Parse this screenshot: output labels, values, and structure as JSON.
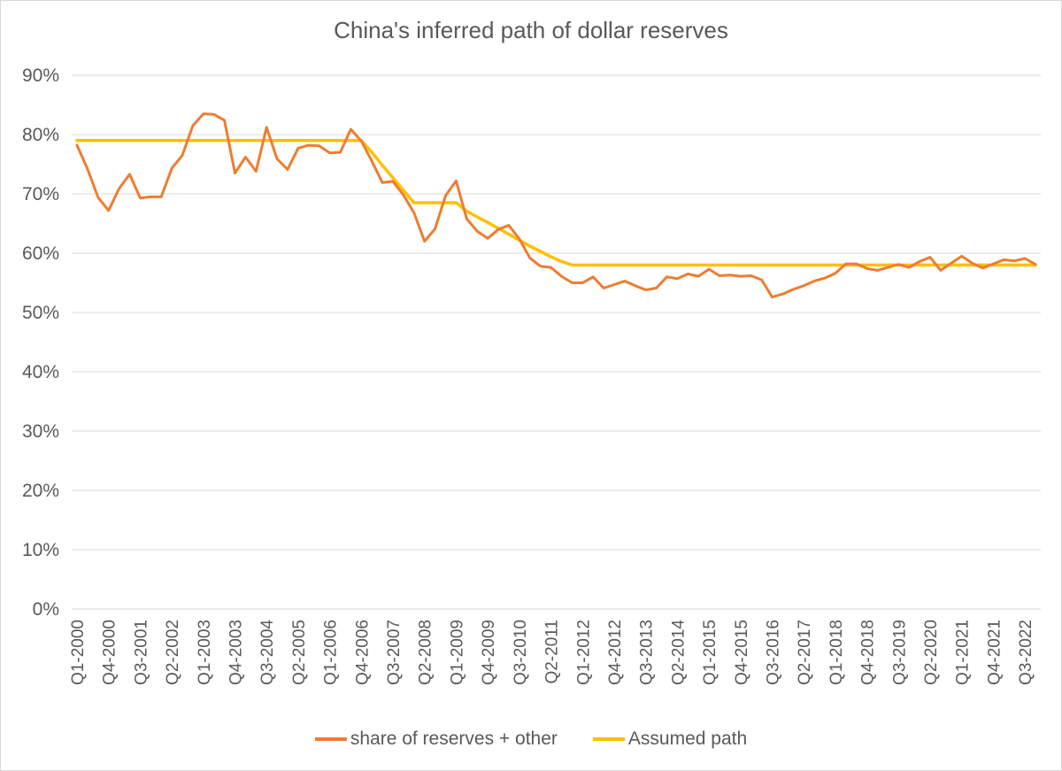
{
  "chart_data": {
    "type": "line",
    "title": "China's inferred path of dollar reserves",
    "xlabel": "",
    "ylabel": "",
    "ylim": [
      0,
      0.9
    ],
    "yticks": [
      0,
      0.1,
      0.2,
      0.3,
      0.4,
      0.5,
      0.6,
      0.7,
      0.8,
      0.9
    ],
    "ytick_labels": [
      "0%",
      "10%",
      "20%",
      "30%",
      "40%",
      "50%",
      "60%",
      "70%",
      "80%",
      "90%"
    ],
    "grid": true,
    "legend": "bottom",
    "x_start": "Q1-2000",
    "x_end": "Q4-2022",
    "x_tick_labels": [
      "Q1-2000",
      "Q4-2000",
      "Q3-2001",
      "Q2-2002",
      "Q1-2003",
      "Q4-2003",
      "Q3-2004",
      "Q2-2005",
      "Q1-2006",
      "Q4-2006",
      "Q3-2007",
      "Q2-2008",
      "Q1-2009",
      "Q4-2009",
      "Q3-2010",
      "Q2-2011",
      "Q1-2012",
      "Q4-2012",
      "Q3-2013",
      "Q2-2014",
      "Q1-2015",
      "Q4-2015",
      "Q3-2016",
      "Q2-2017",
      "Q1-2018",
      "Q4-2018",
      "Q3-2019",
      "Q2-2020",
      "Q1-2021",
      "Q4-2021",
      "Q3-2022"
    ],
    "series": [
      {
        "name": "share of reserves + other",
        "color": "#ED7D31",
        "values": [
          0.782,
          0.742,
          0.694,
          0.672,
          0.709,
          0.733,
          0.693,
          0.695,
          0.695,
          0.743,
          0.765,
          0.815,
          0.835,
          0.834,
          0.824,
          0.735,
          0.762,
          0.738,
          0.812,
          0.759,
          0.741,
          0.777,
          0.782,
          0.781,
          0.769,
          0.77,
          0.809,
          0.789,
          0.755,
          0.719,
          0.721,
          0.698,
          0.668,
          0.62,
          0.641,
          0.697,
          0.722,
          0.658,
          0.637,
          0.625,
          0.64,
          0.647,
          0.624,
          0.592,
          0.578,
          0.576,
          0.561,
          0.55,
          0.55,
          0.56,
          0.541,
          0.547,
          0.553,
          0.545,
          0.538,
          0.541,
          0.56,
          0.557,
          0.565,
          0.561,
          0.573,
          0.562,
          0.563,
          0.561,
          0.562,
          0.555,
          0.526,
          0.531,
          0.539,
          0.545,
          0.553,
          0.558,
          0.566,
          0.582,
          0.582,
          0.574,
          0.571,
          0.576,
          0.581,
          0.576,
          0.586,
          0.593,
          0.571,
          0.583,
          0.595,
          0.583,
          0.575,
          0.582,
          0.589,
          0.587,
          0.591,
          0.581
        ]
      },
      {
        "name": "Assumed path",
        "color": "#FFC000",
        "values": [
          0.79,
          0.79,
          0.79,
          0.79,
          0.79,
          0.79,
          0.79,
          0.79,
          0.79,
          0.79,
          0.79,
          0.79,
          0.79,
          0.79,
          0.79,
          0.79,
          0.79,
          0.79,
          0.79,
          0.79,
          0.79,
          0.79,
          0.79,
          0.79,
          0.79,
          0.79,
          0.79,
          0.79,
          0.77,
          0.748,
          0.727,
          0.706,
          0.685,
          0.685,
          0.685,
          0.685,
          0.685,
          0.671,
          0.661,
          0.652,
          0.642,
          0.632,
          0.622,
          0.612,
          0.603,
          0.594,
          0.586,
          0.58,
          0.58,
          0.58,
          0.58,
          0.58,
          0.58,
          0.58,
          0.58,
          0.58,
          0.58,
          0.58,
          0.58,
          0.58,
          0.58,
          0.58,
          0.58,
          0.58,
          0.58,
          0.58,
          0.58,
          0.58,
          0.58,
          0.58,
          0.58,
          0.58,
          0.58,
          0.58,
          0.58,
          0.58,
          0.58,
          0.58,
          0.58,
          0.58,
          0.58,
          0.58,
          0.58,
          0.58,
          0.58,
          0.58,
          0.58,
          0.58,
          0.58,
          0.58,
          0.58,
          0.58
        ]
      }
    ]
  }
}
